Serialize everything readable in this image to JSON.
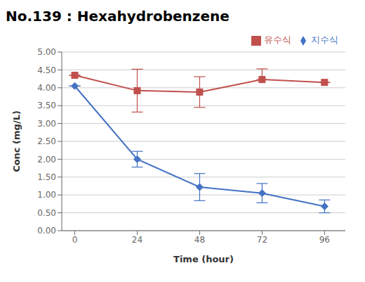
{
  "chart_data": {
    "type": "line",
    "title": "No.139 : Hexahydrobenzene",
    "x_label": "Time (hour)",
    "y_label": "Conc  (mg/L)",
    "x": [
      0,
      24,
      48,
      72,
      96
    ],
    "xlim": [
      -5,
      104
    ],
    "xticks": [
      0,
      24,
      48,
      72,
      96
    ],
    "ylim": [
      0.0,
      5.0
    ],
    "yticks": [
      {
        "value": 0.0,
        "label": "0.00"
      },
      {
        "value": 0.5,
        "label": "0.50"
      },
      {
        "value": 1.0,
        "label": "1.00"
      },
      {
        "value": 1.5,
        "label": "1.50"
      },
      {
        "value": 2.0,
        "label": "2.00"
      },
      {
        "value": 2.5,
        "label": "2.50"
      },
      {
        "value": 3.0,
        "label": "3.00"
      },
      {
        "value": 3.5,
        "label": "3.50"
      },
      {
        "value": 4.0,
        "label": "4.00"
      },
      {
        "value": 4.5,
        "label": "4.50"
      },
      {
        "value": 5.0,
        "label": "5.00"
      }
    ],
    "grid": "y",
    "legend": "upper right",
    "series": [
      {
        "name": "지수식",
        "color": "#4472C4",
        "marker": "diamond",
        "values": [
          4.05,
          2.0,
          1.22,
          1.05,
          0.68
        ],
        "errors_low": [
          0.0,
          0.22,
          0.38,
          0.27,
          0.18
        ],
        "errors_high": [
          0.0,
          0.22,
          0.38,
          0.27,
          0.18
        ]
      },
      {
        "name": "유수식",
        "color": "#C0504D",
        "marker": "square",
        "values": [
          4.35,
          3.92,
          3.88,
          4.23,
          4.15
        ],
        "errors_low": [
          0.0,
          0.6,
          0.43,
          0.0,
          0.0
        ],
        "errors_high": [
          0.0,
          0.6,
          0.43,
          0.3,
          0.0
        ]
      }
    ]
  }
}
